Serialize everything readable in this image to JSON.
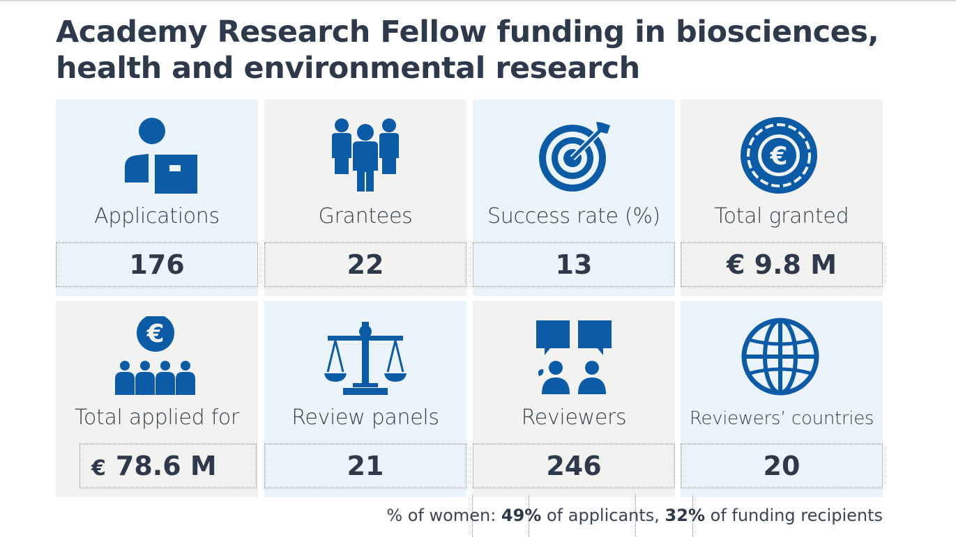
{
  "title": "Academy Research Fellow funding in biosciences, health and environmental research",
  "stats": [
    {
      "label": "Applications",
      "value": "176",
      "icon": "applicant-icon"
    },
    {
      "label": "Grantees",
      "value": "22",
      "icon": "people-group-icon"
    },
    {
      "label": "Success rate (%)",
      "value": "13",
      "icon": "target-icon"
    },
    {
      "label": "Total granted",
      "value": "€ 9.8 M",
      "icon": "euro-coin-icon"
    },
    {
      "label": "Total applied for",
      "value_symbol": "€",
      "value_amount": "78.6 M",
      "icon": "euro-audience-icon"
    },
    {
      "label": "Review panels",
      "value": "21",
      "icon": "scales-icon"
    },
    {
      "label": "Reviewers",
      "value": "246",
      "icon": "reviewers-speech-icon"
    },
    {
      "label": "Reviewers’ countries",
      "value": "20",
      "icon": "globe-icon"
    }
  ],
  "footer": {
    "prefix": "% of women: ",
    "applicants_pct": "49%",
    "applicants_text": " of applicants, ",
    "recipients_pct": "32%",
    "recipients_text": " of funding recipients"
  },
  "colors": {
    "icon": "#0b5ba7",
    "tile_blue": "#ebf3fd",
    "tile_grey": "#f2f2f1",
    "text": "#2e3a4c"
  }
}
